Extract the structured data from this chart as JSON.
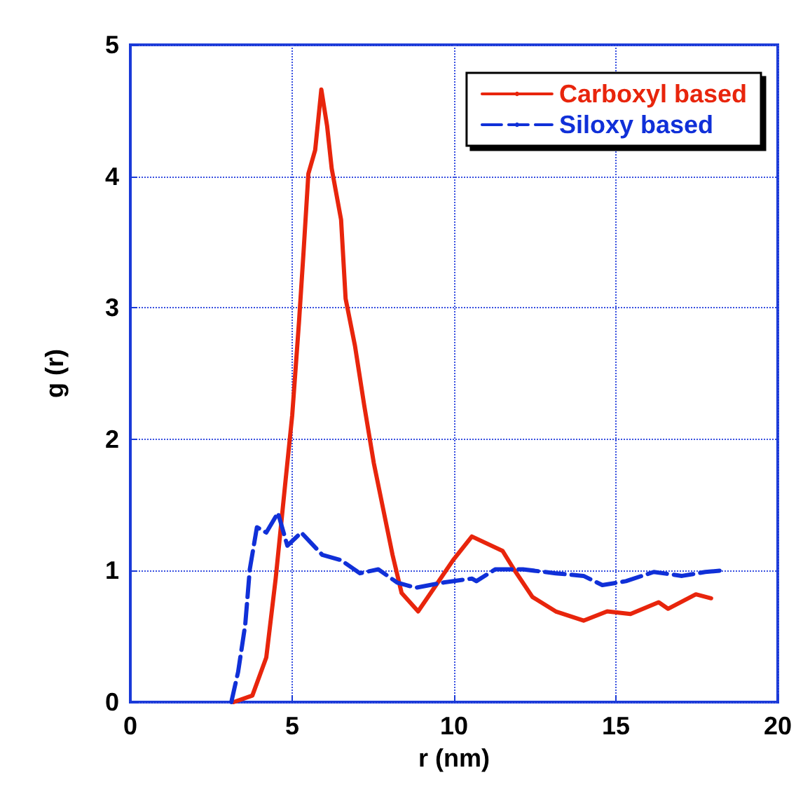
{
  "chart_data": {
    "type": "line",
    "xlabel": "r (nm)",
    "ylabel": "g (r)",
    "xlim": [
      0,
      20
    ],
    "xticks": [
      0,
      5,
      10,
      15,
      20
    ],
    "ylim": [
      0,
      5
    ],
    "yticks": [
      0,
      1,
      2,
      3,
      4,
      5
    ],
    "grid": true,
    "legend": "top right",
    "marker": "none",
    "series": [
      {
        "name": "Carboxyl based",
        "color": "#e8250c",
        "line_style": "solid",
        "x": [
          3.19,
          3.77,
          4.2,
          4.49,
          4.78,
          5.0,
          5.21,
          5.35,
          5.5,
          5.71,
          5.9,
          6.08,
          6.22,
          6.51,
          6.65,
          6.94,
          7.23,
          7.52,
          7.81,
          8.1,
          8.38,
          8.89,
          9.39,
          9.97,
          10.55,
          11.5,
          11.85,
          12.42,
          13.14,
          14.0,
          14.73,
          15.45,
          16.32,
          16.61,
          17.47,
          17.94
        ],
        "values": [
          0,
          0.05,
          0.34,
          0.94,
          1.65,
          2.18,
          2.89,
          3.42,
          4.02,
          4.2,
          4.66,
          4.38,
          4.06,
          3.67,
          3.07,
          2.71,
          2.25,
          1.82,
          1.47,
          1.12,
          0.83,
          0.69,
          0.87,
          1.08,
          1.26,
          1.15,
          1.01,
          0.8,
          0.69,
          0.62,
          0.69,
          0.67,
          0.76,
          0.71,
          0.82,
          0.79
        ]
      },
      {
        "name": "Siloxy based",
        "color": "#1030d8",
        "line_style": "dashed",
        "x": [
          3.12,
          3.33,
          3.55,
          3.69,
          3.91,
          4.2,
          4.56,
          4.85,
          5.28,
          5.93,
          6.51,
          7.09,
          7.66,
          8.24,
          8.82,
          9.68,
          10.55,
          10.69,
          11.27,
          12.13,
          13.14,
          14.0,
          14.58,
          15.31,
          16.17,
          17.04,
          17.76,
          18.2
        ],
        "values": [
          0,
          0.23,
          0.59,
          1.01,
          1.33,
          1.29,
          1.44,
          1.19,
          1.29,
          1.12,
          1.08,
          0.98,
          1.01,
          0.91,
          0.87,
          0.91,
          0.94,
          0.92,
          1.01,
          1.01,
          0.98,
          0.96,
          0.89,
          0.92,
          0.99,
          0.96,
          0.99,
          1.0
        ]
      }
    ]
  }
}
